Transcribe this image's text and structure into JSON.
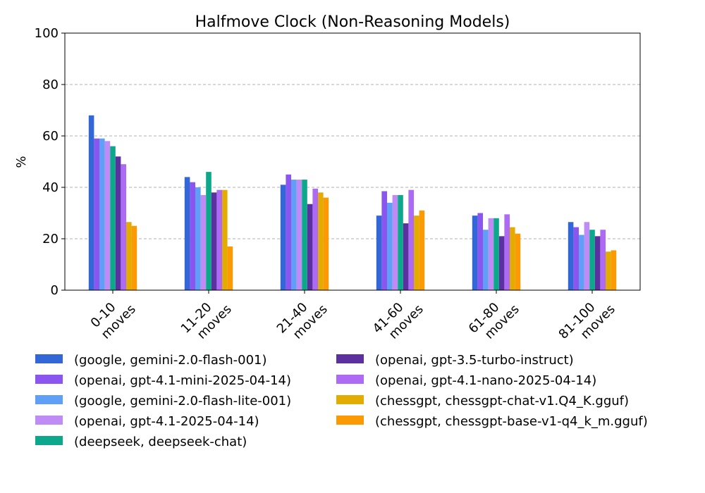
{
  "chart_data": {
    "type": "bar",
    "title": "Halfmove Clock (Non-Reasoning Models)",
    "xlabel": "",
    "ylabel": "%",
    "ylim": [
      0,
      100
    ],
    "yticks": [
      "0",
      "20",
      "40",
      "60",
      "80",
      "100"
    ],
    "grid": "y-dashed",
    "legend_position": "bottom",
    "categories": [
      "0-10 moves",
      "11-20 moves",
      "21-40 moves",
      "41-60 moves",
      "61-80 moves",
      "81-100 moves"
    ],
    "series": [
      {
        "name": "(google, gemini-2.0-flash-001)",
        "color": "#3366d6",
        "values": [
          68,
          44,
          41,
          29,
          29,
          26.5
        ]
      },
      {
        "name": "(openai, gpt-4.1-mini-2025-04-14)",
        "color": "#8b55f0",
        "values": [
          59,
          42,
          45,
          38.5,
          30,
          24.5
        ]
      },
      {
        "name": "(google, gemini-2.0-flash-lite-001)",
        "color": "#5f9ff5",
        "values": [
          59,
          40,
          43,
          34,
          23.5,
          21.5
        ]
      },
      {
        "name": "(openai, gpt-4.1-2025-04-14)",
        "color": "#bf8cf5",
        "values": [
          58,
          37,
          43,
          37,
          28,
          26.5
        ]
      },
      {
        "name": "(deepseek, deepseek-chat)",
        "color": "#0da88b",
        "values": [
          56,
          46,
          43,
          37,
          28,
          23.5
        ]
      },
      {
        "name": "(openai, gpt-3.5-turbo-instruct)",
        "color": "#5b31a0",
        "values": [
          52,
          38,
          33.5,
          26,
          21,
          21
        ]
      },
      {
        "name": "(openai, gpt-4.1-nano-2025-04-14)",
        "color": "#ac6af5",
        "values": [
          49,
          39,
          39.5,
          39,
          29.5,
          23.5
        ]
      },
      {
        "name": "(chessgpt, chessgpt-chat-v1.Q4_K.gguf)",
        "color": "#e2ac02",
        "values": [
          26.5,
          39,
          38,
          29,
          24.5,
          15
        ]
      },
      {
        "name": "(chessgpt, chessgpt-base-v1-q4_k_m.gguf)",
        "color": "#fb9a05",
        "values": [
          25,
          17,
          36,
          31,
          22,
          15.5
        ]
      }
    ]
  }
}
